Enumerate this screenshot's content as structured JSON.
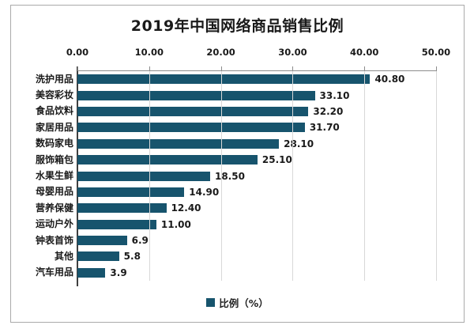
{
  "chart_data": {
    "type": "bar",
    "orientation": "horizontal",
    "title": "2019年中国网络商品销售比例",
    "categories": [
      "洗护用品",
      "美容彩妆",
      "食品饮料",
      "家居用品",
      "数码家电",
      "服饰箱包",
      "水果生鲜",
      "母婴用品",
      "营养保健",
      "运动户外",
      "钟表首饰",
      "其他",
      "汽车用品"
    ],
    "values": [
      40.8,
      33.1,
      32.2,
      31.7,
      28.1,
      25.1,
      18.5,
      14.9,
      12.4,
      11.0,
      6.9,
      5.8,
      3.9
    ],
    "value_labels": [
      "40.80",
      "33.10",
      "32.20",
      "31.70",
      "28.10",
      "25.10",
      "18.50",
      "14.90",
      "12.40",
      "11.00",
      "6.9",
      "5.8",
      "3.9"
    ],
    "xticks": [
      "0.00",
      "10.00",
      "20.00",
      "30.00",
      "40.00",
      "50.00"
    ],
    "xlim": [
      0,
      50
    ],
    "grid": "vertical-major",
    "legend": {
      "label": "比例（%）",
      "position": "bottom"
    },
    "colors": {
      "bar": "#17546d",
      "gridline": "#d8d8d8",
      "axis_line": "#8c8c8c",
      "y_axis_line": "#3f3f3f",
      "text": "#1a1a1a",
      "frame_border": "#aaaaaa"
    }
  }
}
